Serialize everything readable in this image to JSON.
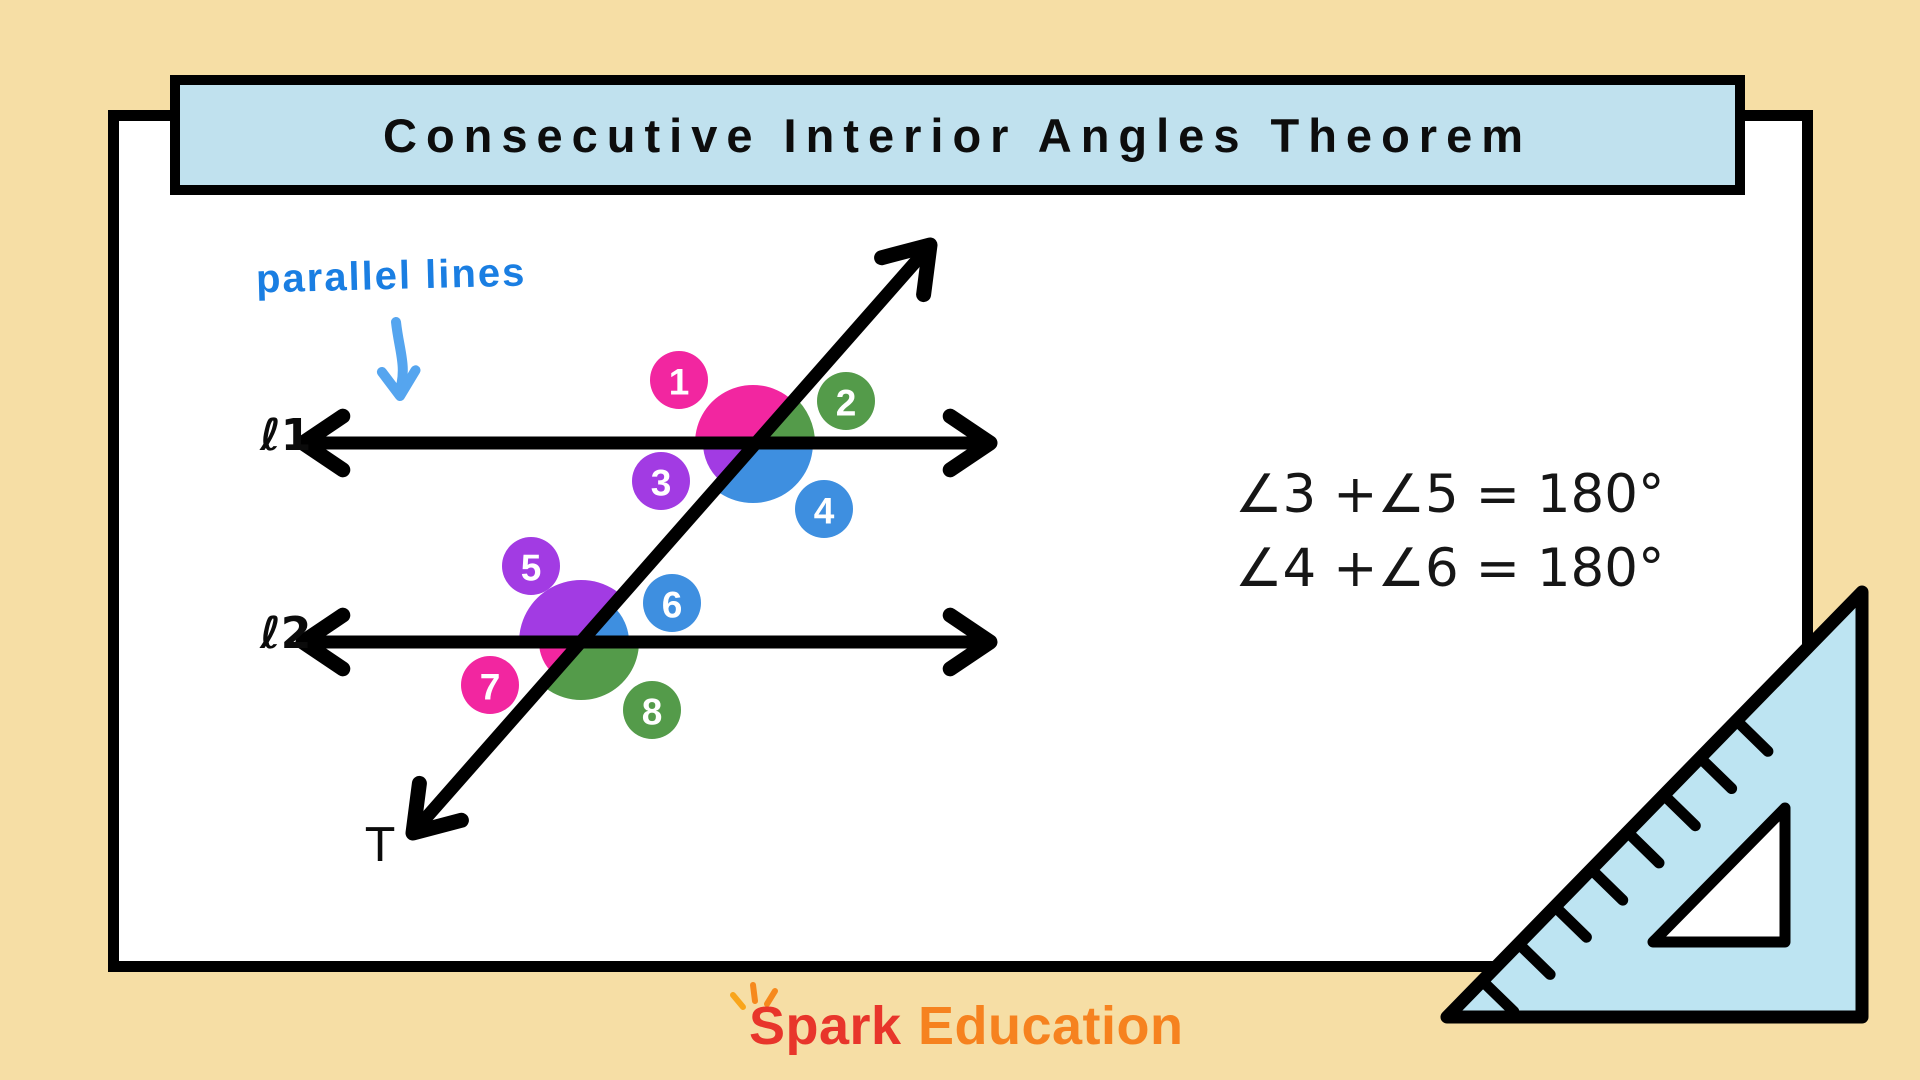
{
  "title": {
    "text": "Consecutive Interior Angles Theorem"
  },
  "annotation": {
    "label": "parallel lines"
  },
  "diagram": {
    "line1_label": "ℓ1",
    "line2_label": "ℓ2",
    "transversal_label": "T",
    "colors": {
      "pink": "#F226A0",
      "green": "#549B4A",
      "purple": "#A23BE3",
      "blue": "#3E8FE0"
    },
    "angles": [
      {
        "num": "1",
        "color": "pink",
        "intersection": 1,
        "position": "upper-left"
      },
      {
        "num": "2",
        "color": "green",
        "intersection": 1,
        "position": "upper-right"
      },
      {
        "num": "3",
        "color": "purple",
        "intersection": 1,
        "position": "lower-left"
      },
      {
        "num": "4",
        "color": "blue",
        "intersection": 1,
        "position": "lower-right"
      },
      {
        "num": "5",
        "color": "purple",
        "intersection": 2,
        "position": "upper-left"
      },
      {
        "num": "6",
        "color": "blue",
        "intersection": 2,
        "position": "upper-right"
      },
      {
        "num": "7",
        "color": "pink",
        "intersection": 2,
        "position": "lower-left"
      },
      {
        "num": "8",
        "color": "green",
        "intersection": 2,
        "position": "lower-right"
      }
    ]
  },
  "equations": {
    "line1": "∠3 +∠5 = 180°",
    "line2": "∠4 +∠6 = 180°"
  },
  "logo": {
    "word1": "Spark",
    "word2": "Education",
    "word1_color": "#E8352B",
    "word2_color": "#F6821F"
  },
  "theme": {
    "background": "#F6DEA5",
    "panel": "#FFFFFF",
    "banner": "#C0E1EE",
    "ruler": "#BDE4F2",
    "ink": "#000000",
    "handwriting_blue": "#1A7EE2",
    "arrow_blue": "#55A5EF"
  }
}
